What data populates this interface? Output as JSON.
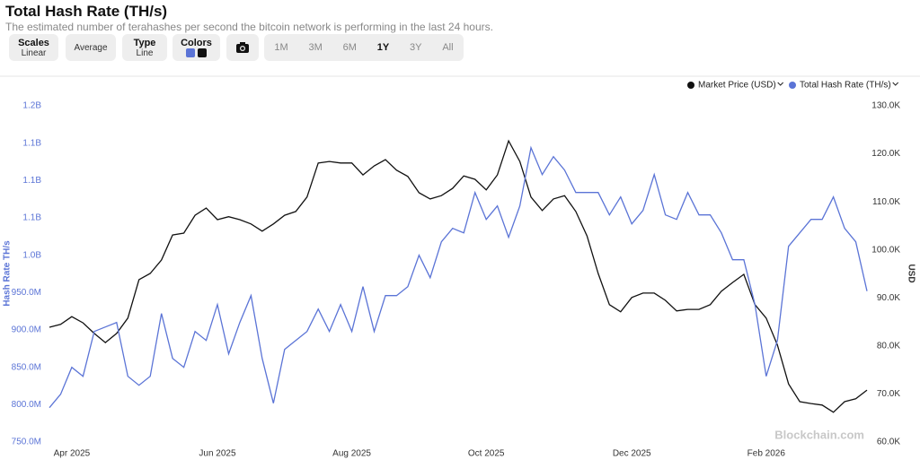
{
  "header": {
    "title": "Total Hash Rate (TH/s)",
    "subtitle": "The estimated number of terahashes per second the bitcoin network is performing in the last 24 hours.",
    "controls": [
      {
        "label": "Scales",
        "value": "Linear"
      },
      {
        "label": "Average"
      },
      {
        "label": "Type",
        "value": "Line"
      },
      {
        "label": "Colors"
      }
    ],
    "ranges": [
      "1M",
      "3M",
      "6M",
      "1Y",
      "3Y",
      "All"
    ],
    "active_range": "1Y"
  },
  "watermark": "Blockchain.com",
  "chart_data": {
    "type": "line",
    "y_label": "Hash Rate TH/s",
    "y2_label": "USD",
    "categories": [
      null,
      null,
      "Apr 2025",
      null,
      null,
      null,
      null,
      null,
      null,
      null,
      null,
      null,
      null,
      null,
      null,
      "Jun 2025",
      null,
      null,
      null,
      null,
      null,
      null,
      null,
      null,
      null,
      null,
      null,
      "Aug 2025",
      null,
      null,
      null,
      null,
      null,
      null,
      null,
      null,
      null,
      null,
      null,
      "Oct 2025",
      null,
      null,
      null,
      null,
      null,
      null,
      null,
      null,
      null,
      null,
      null,
      null,
      "Dec 2025",
      null,
      null,
      null,
      null,
      null,
      null,
      null,
      null,
      null,
      null,
      null,
      "Feb 2026",
      null,
      null,
      null,
      null,
      null,
      null,
      null,
      null,
      null
    ],
    "series": [
      {
        "name": "Market Price (USD)",
        "color": "#111111",
        "axis": "y2",
        "values": [
          83900,
          84500,
          86100,
          84800,
          82600,
          80700,
          82600,
          85800,
          93800,
          95100,
          97900,
          103100,
          103500,
          107200,
          108700,
          106300,
          106900,
          106300,
          105400,
          103900,
          105400,
          107200,
          108000,
          111000,
          118100,
          118400,
          118100,
          118100,
          115600,
          117500,
          118800,
          116600,
          115300,
          111900,
          110600,
          111300,
          112800,
          115400,
          114700,
          112500,
          115600,
          122700,
          118400,
          111000,
          108200,
          110600,
          111300,
          108000,
          102900,
          95100,
          88600,
          87100,
          90100,
          91000,
          91000,
          89500,
          87300,
          87600,
          87600,
          88600,
          91400,
          93200,
          94900,
          88600,
          85800,
          80200,
          72100,
          68400,
          68000,
          67700,
          66200,
          68400,
          69000,
          70800
        ]
      },
      {
        "name": "Total Hash Rate (TH/s)",
        "color": "#5b74d6",
        "values": [
          796000000,
          814000000,
          850000000,
          838000000,
          898000000,
          904000000,
          910000000,
          838000000,
          826000000,
          838000000,
          922000000,
          862000000,
          850000000,
          898000000,
          886000000,
          934000000,
          868000000,
          910000000,
          946000000,
          862000000,
          802000000,
          874000000,
          886000000,
          898000000,
          928000000,
          898000000,
          934000000,
          898000000,
          958000000,
          898000000,
          946000000,
          946000000,
          958000000,
          1000000000,
          970000000,
          1018000000,
          1036000000,
          1030000000,
          1084000000,
          1048000000,
          1066000000,
          1024000000,
          1066000000,
          1144000000,
          1108000000,
          1132000000,
          1114000000,
          1084000000,
          1084000000,
          1084000000,
          1054000000,
          1078000000,
          1042000000,
          1060000000,
          1108000000,
          1054000000,
          1048000000,
          1084000000,
          1054000000,
          1054000000,
          1030000000,
          994000000,
          994000000,
          934000000,
          838000000,
          886000000,
          1012000000,
          1030000000,
          1048000000,
          1048000000,
          1078000000,
          1036000000,
          1018000000,
          952000000
        ]
      }
    ],
    "ylim": [
      750000000,
      1200000000
    ],
    "yticks": [
      {
        "value": 750000000,
        "label": "750.0M"
      },
      {
        "value": 800000000,
        "label": "800.0M"
      },
      {
        "value": 850000000,
        "label": "850.0M"
      },
      {
        "value": 900000000,
        "label": "900.0M"
      },
      {
        "value": 950000000,
        "label": "950.0M"
      },
      {
        "value": 1000000000,
        "label": "1.0B"
      },
      {
        "value": 1050000000,
        "label": "1.1B"
      },
      {
        "value": 1100000000,
        "label": "1.1B"
      },
      {
        "value": 1150000000,
        "label": "1.1B"
      },
      {
        "value": 1200000000,
        "label": "1.2B"
      }
    ],
    "y2lim": [
      60000,
      130000
    ],
    "y2ticks": [
      {
        "value": 60000,
        "label": "60.0K"
      },
      {
        "value": 70000,
        "label": "70.0K"
      },
      {
        "value": 80000,
        "label": "80.0K"
      },
      {
        "value": 90000,
        "label": "90.0K"
      },
      {
        "value": 100000,
        "label": "100.0K"
      },
      {
        "value": 110000,
        "label": "110.0K"
      },
      {
        "value": 120000,
        "label": "120.0K"
      },
      {
        "value": 130000,
        "label": "130.0K"
      }
    ],
    "grid": false,
    "legend": "top-right"
  }
}
